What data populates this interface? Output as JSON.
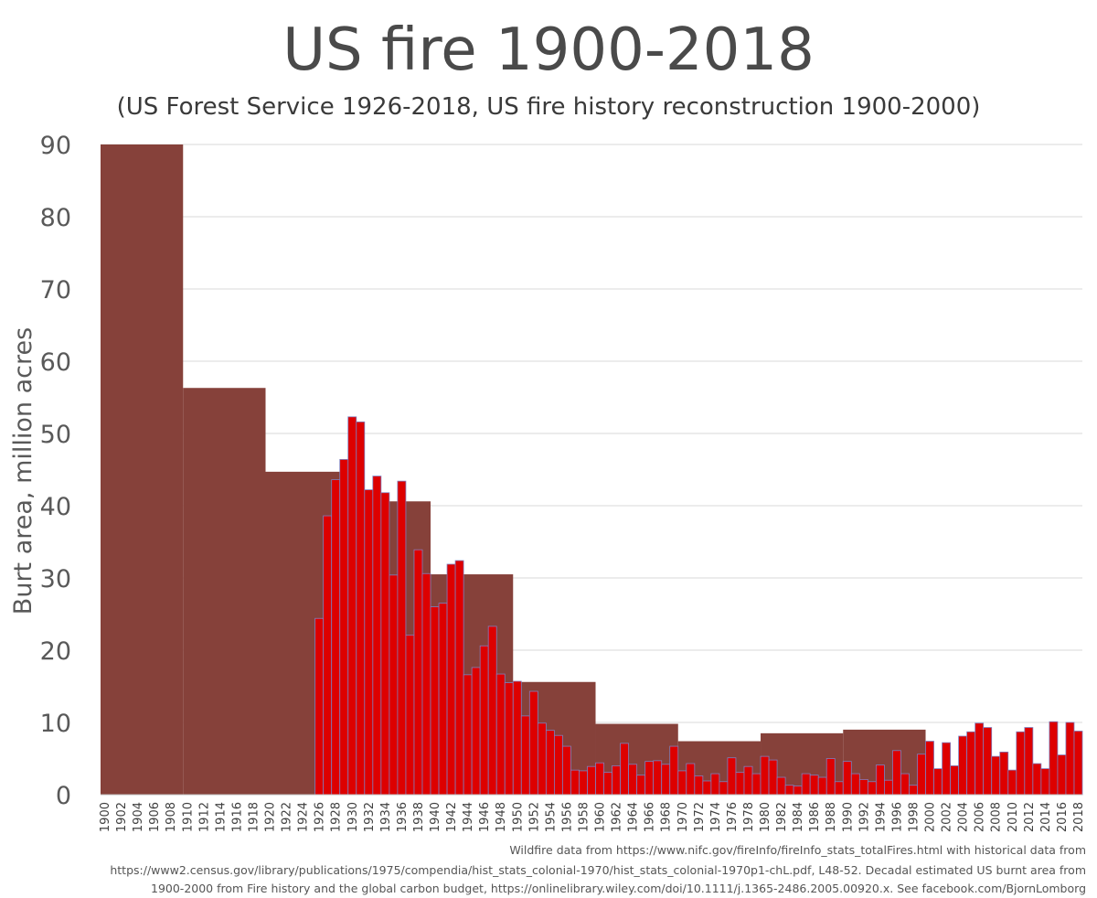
{
  "title": "US fire 1900-2018",
  "subtitle": "(US Forest Service 1926-2018,  US fire history reconstruction 1900-2000)",
  "source_lines": [
    "Wildfire data from https://www.nifc.gov/fireInfo/fireInfo_stats_totalFires.html with historical data from",
    "https://www2.census.gov/library/publications/1975/compendia/hist_stats_colonial-1970/hist_stats_colonial-1970p1-chL.pdf, L48-52. Decadal estimated US burnt area from",
    "1900-2000 from Fire history and the global carbon budget,  https://onlinelibrary.wiley.com/doi/10.1111/j.1365-2486.2005.00920.x. See facebook.com/BjornLomborg"
  ],
  "colors": {
    "decadal": "#86413a",
    "annual": "#dd0000",
    "annual_edge": "#7f7fbf",
    "grid": "#d9d9d9",
    "text": "#595959"
  },
  "chart_data": {
    "type": "bar",
    "xlabel": "",
    "ylabel": "Burt area, million acres",
    "ylim": [
      0,
      90
    ],
    "yticks": [
      0,
      10,
      20,
      30,
      40,
      50,
      60,
      70,
      80,
      90
    ],
    "xlim": [
      1900,
      2018
    ],
    "xticks": [
      1900,
      1902,
      1904,
      1906,
      1908,
      1910,
      1912,
      1914,
      1916,
      1918,
      1920,
      1922,
      1924,
      1926,
      1928,
      1930,
      1932,
      1934,
      1936,
      1938,
      1940,
      1942,
      1944,
      1946,
      1948,
      1950,
      1952,
      1954,
      1956,
      1958,
      1960,
      1962,
      1964,
      1966,
      1968,
      1970,
      1972,
      1974,
      1976,
      1978,
      1980,
      1982,
      1984,
      1986,
      1988,
      1990,
      1992,
      1994,
      1996,
      1998,
      2000,
      2002,
      2004,
      2006,
      2008,
      2010,
      2012,
      2014,
      2016,
      2018
    ],
    "grid": true,
    "series": [
      {
        "kind": "decadal",
        "decades": [
          {
            "start": 1900,
            "end": 1909,
            "value": 90
          },
          {
            "start": 1910,
            "end": 1919,
            "value": 56.3
          },
          {
            "start": 1920,
            "end": 1929,
            "value": 44.7
          },
          {
            "start": 1930,
            "end": 1939,
            "value": 40.6
          },
          {
            "start": 1940,
            "end": 1949,
            "value": 30.5
          },
          {
            "start": 1950,
            "end": 1959,
            "value": 15.6
          },
          {
            "start": 1960,
            "end": 1969,
            "value": 9.8
          },
          {
            "start": 1970,
            "end": 1979,
            "value": 7.4
          },
          {
            "start": 1980,
            "end": 1989,
            "value": 8.5
          },
          {
            "start": 1990,
            "end": 1999,
            "value": 9.0
          }
        ]
      },
      {
        "kind": "annual",
        "x": [
          1926,
          1927,
          1928,
          1929,
          1930,
          1931,
          1932,
          1933,
          1934,
          1935,
          1936,
          1937,
          1938,
          1939,
          1940,
          1941,
          1942,
          1943,
          1944,
          1945,
          1946,
          1947,
          1948,
          1949,
          1950,
          1951,
          1952,
          1953,
          1954,
          1955,
          1956,
          1957,
          1958,
          1959,
          1960,
          1961,
          1962,
          1963,
          1964,
          1965,
          1966,
          1967,
          1968,
          1969,
          1970,
          1971,
          1972,
          1973,
          1974,
          1975,
          1976,
          1977,
          1978,
          1979,
          1980,
          1981,
          1982,
          1983,
          1984,
          1985,
          1986,
          1987,
          1988,
          1989,
          1990,
          1991,
          1992,
          1993,
          1994,
          1995,
          1996,
          1997,
          1998,
          1999,
          2000,
          2001,
          2002,
          2003,
          2004,
          2005,
          2006,
          2007,
          2008,
          2009,
          2010,
          2011,
          2012,
          2013,
          2014,
          2015,
          2016,
          2017,
          2018
        ],
        "values": [
          24.4,
          38.6,
          43.6,
          46.4,
          52.3,
          51.6,
          42.2,
          44.1,
          41.8,
          30.4,
          43.4,
          22.1,
          33.9,
          30.6,
          26.0,
          26.5,
          31.9,
          32.4,
          16.6,
          17.6,
          20.6,
          23.3,
          16.7,
          15.5,
          15.7,
          10.9,
          14.3,
          9.9,
          8.9,
          8.2,
          6.7,
          3.4,
          3.3,
          3.9,
          4.4,
          3.1,
          4.0,
          7.1,
          4.2,
          2.7,
          4.6,
          4.7,
          4.2,
          6.7,
          3.3,
          4.3,
          2.6,
          1.9,
          2.9,
          1.8,
          5.1,
          3.1,
          3.9,
          2.9,
          5.3,
          4.8,
          2.4,
          1.3,
          1.2,
          2.9,
          2.7,
          2.4,
          5.0,
          1.8,
          4.6,
          2.9,
          2.1,
          1.8,
          4.1,
          2.0,
          6.1,
          2.9,
          1.3,
          5.6,
          7.4,
          3.6,
          7.2,
          4.0,
          8.1,
          8.7,
          9.9,
          9.3,
          5.3,
          5.9,
          3.4,
          8.7,
          9.3,
          4.3,
          3.6,
          10.1,
          5.5,
          10.0,
          8.8
        ]
      }
    ]
  }
}
